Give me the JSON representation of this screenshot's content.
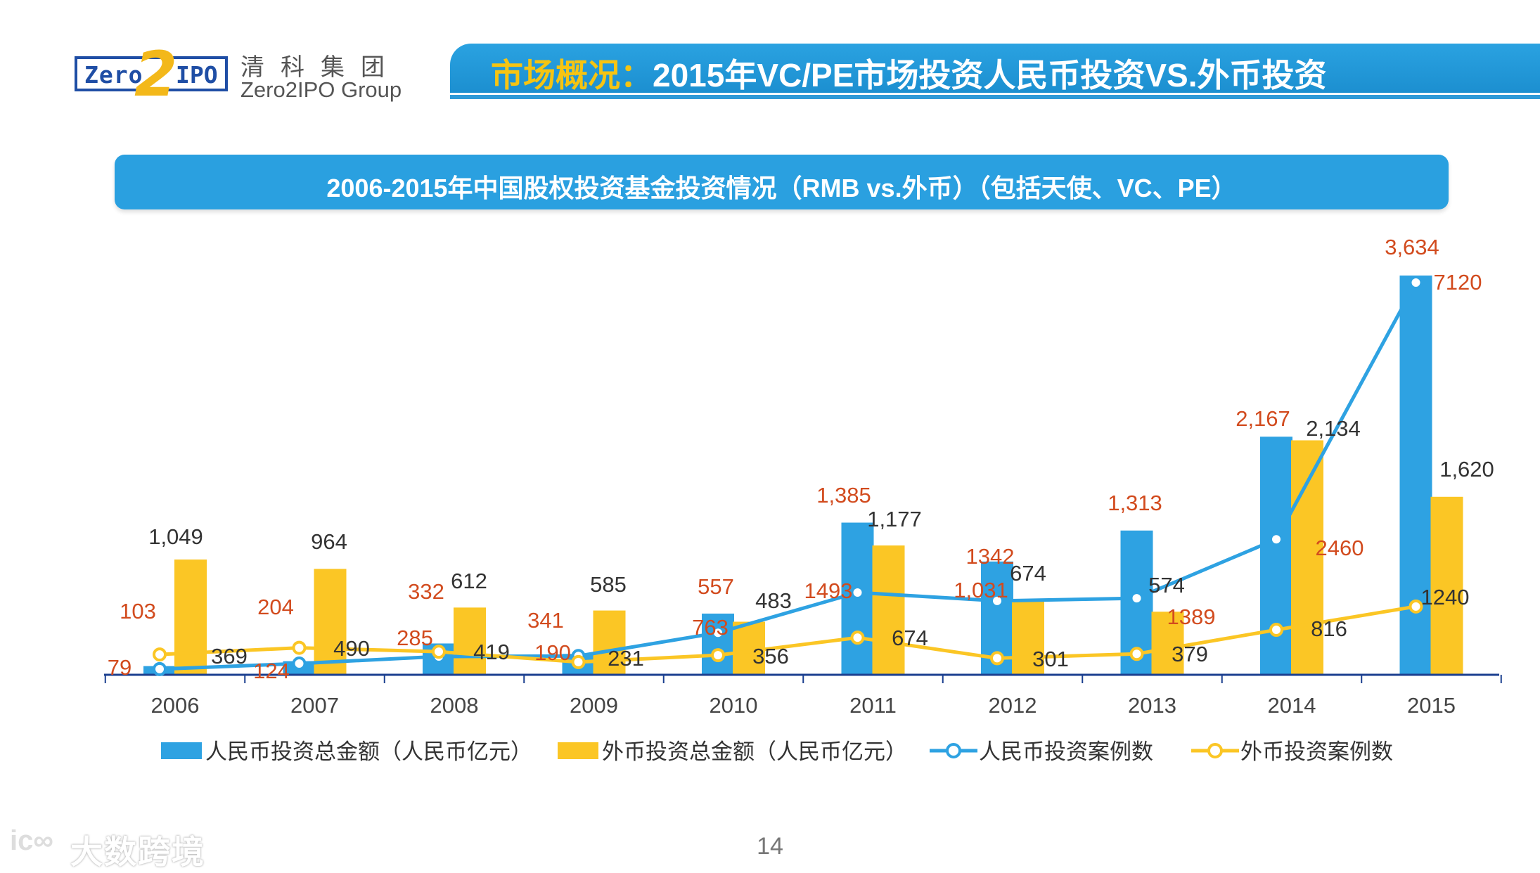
{
  "logo": {
    "mark_left": "Zero",
    "mark_two": "2",
    "mark_right": "IPO",
    "name_cn": "清科集团",
    "name_en": "Zero2IPO Group"
  },
  "header": {
    "title_highlight": "市场概况：",
    "title_rest": "2015年VC/PE市场投资人民币投资VS.外币投资"
  },
  "subtitle": "2006-2015年中国股权投资基金投资情况（RMB vs.外币）（包括天使、VC、PE）",
  "page_number": "14",
  "watermark": {
    "icon": "ic∞",
    "text": "大数跨境"
  },
  "colors": {
    "rmb": "#2ea2e2",
    "foreign": "#fbc625",
    "red_label": "#d24b1e",
    "dark_label": "#333333"
  },
  "chart_data": {
    "type": "bar",
    "title": "2006-2015年中国股权投资基金投资情况（RMB vs.外币）（包括天使、VC、PE）",
    "categories": [
      "2006",
      "2007",
      "2008",
      "2009",
      "2010",
      "2011",
      "2012",
      "2013",
      "2014",
      "2015"
    ],
    "series": [
      {
        "name": "人民币投资总金额（人民币亿元）",
        "kind": "bar",
        "values": [
          79,
          124,
          285,
          190,
          557,
          1385,
          1031,
          1313,
          2167,
          3634
        ],
        "labels": [
          "79",
          "124",
          "285",
          "190",
          "557",
          "1,385",
          "1,031",
          "1,313",
          "2,167",
          "3,634"
        ]
      },
      {
        "name": "外币投资总金额（人民币亿元）",
        "kind": "bar",
        "values": [
          1049,
          964,
          612,
          585,
          483,
          1177,
          674,
          574,
          2134,
          1620
        ],
        "labels": [
          "1,049",
          "964",
          "612",
          "585",
          "483",
          "1,177",
          "674",
          "574",
          "2,134",
          "1,620"
        ]
      },
      {
        "name": "人民币投资案例数",
        "kind": "line",
        "values": [
          103,
          204,
          332,
          341,
          763,
          1493,
          1342,
          1389,
          2460,
          7120
        ],
        "labels": [
          "103",
          "204",
          "332",
          "341",
          "763",
          "1493",
          "1342",
          "1389",
          "2460",
          "7120"
        ]
      },
      {
        "name": "外币投资案例数",
        "kind": "line",
        "values": [
          369,
          490,
          419,
          231,
          356,
          674,
          301,
          379,
          816,
          1240
        ],
        "labels": [
          "369",
          "490",
          "419",
          "231",
          "356",
          "674",
          "301",
          "379",
          "816",
          "1240"
        ]
      }
    ],
    "ylim_amount": [
      0,
      3900
    ],
    "ylim_cases": [
      0,
      8600
    ],
    "legend": "bottom",
    "grid": false
  }
}
